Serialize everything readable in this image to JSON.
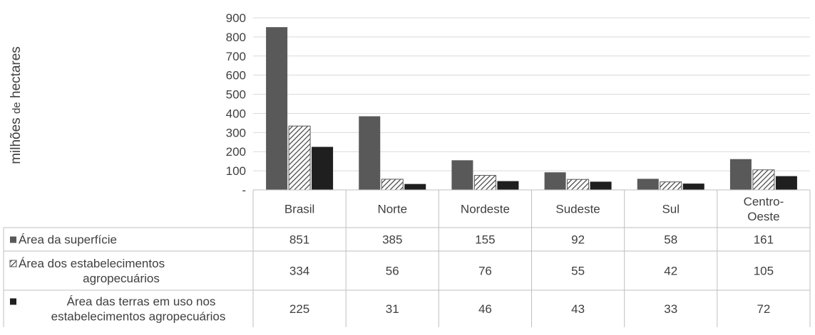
{
  "chart_data": {
    "type": "bar",
    "ylabel_main": "milhões",
    "ylabel_small": "de",
    "ylabel_end": "hectares",
    "ylim": [
      0,
      900
    ],
    "ytick_labels": [
      "-",
      "100",
      "200",
      "300",
      "400",
      "500",
      "600",
      "700",
      "800",
      "900"
    ],
    "grid": true,
    "categories": [
      "Brasil",
      "Norte",
      "Nordeste",
      "Sudeste",
      "Sul",
      "Centro-Oeste"
    ],
    "category_lines": [
      [
        "Brasil"
      ],
      [
        "Norte"
      ],
      [
        "Nordeste"
      ],
      [
        "Sudeste"
      ],
      [
        "Sul"
      ],
      [
        "Centro-",
        "Oeste"
      ]
    ],
    "series": [
      {
        "name": "Área da superfície",
        "name_lines": [
          "Área da superfície"
        ],
        "fill": "solid",
        "color": "#595959",
        "values": [
          851,
          385,
          155,
          92,
          58,
          161
        ]
      },
      {
        "name": "Área dos estabelecimentos agropecuários",
        "name_lines": [
          "Área dos estabelecimentos",
          "agropecuários"
        ],
        "fill": "hatch",
        "color": "#404040",
        "values": [
          334,
          56,
          76,
          55,
          42,
          105
        ]
      },
      {
        "name": "Área das terras em uso nos estabelecimentos agropecuários",
        "name_lines": [
          "Área das terras em uso nos",
          "estabelecimentos agropecuários"
        ],
        "fill": "solid",
        "color": "#1f1f1f",
        "values": [
          225,
          31,
          46,
          43,
          33,
          72
        ]
      }
    ]
  }
}
